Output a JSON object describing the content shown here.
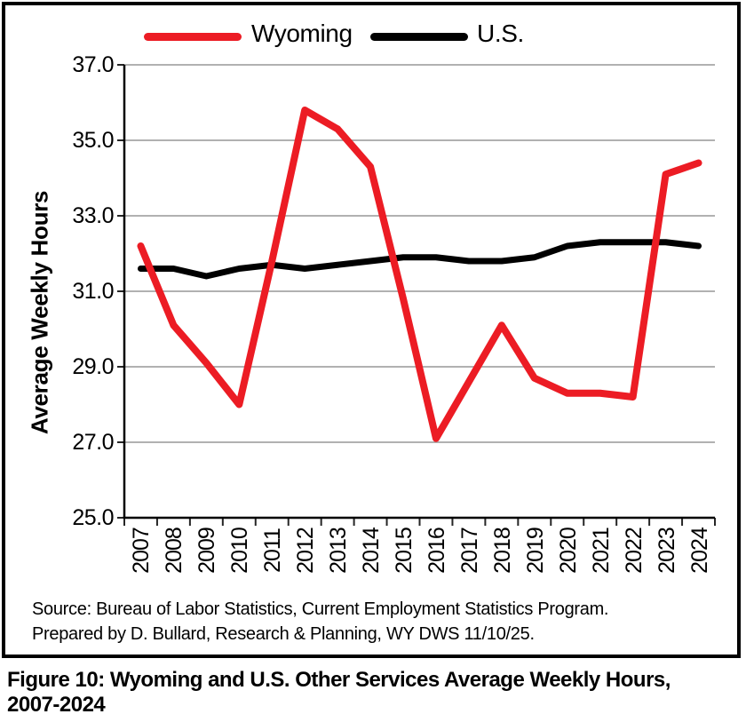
{
  "chart_data": {
    "type": "line",
    "title": "",
    "ylabel": "Average Weekly Hours",
    "xlabel": "",
    "ylim": [
      25.0,
      37.0
    ],
    "yticks": [
      "37.0",
      "35.0",
      "33.0",
      "31.0",
      "29.0",
      "27.0",
      "25.0"
    ],
    "grid": "horizontal",
    "legend_position": "top",
    "categories": [
      "2007",
      "2008",
      "2009",
      "2010",
      "2011",
      "2012",
      "2013",
      "2014",
      "2015",
      "2016",
      "2017",
      "2018",
      "2019",
      "2020",
      "2021",
      "2022",
      "2023",
      "2024"
    ],
    "series": [
      {
        "name": "Wyoming",
        "color": "#ec1c24",
        "values": [
          32.2,
          30.1,
          29.1,
          28.0,
          31.8,
          35.8,
          35.3,
          34.3,
          30.8,
          27.1,
          28.6,
          30.1,
          28.7,
          28.3,
          28.3,
          28.2,
          34.1,
          34.4
        ]
      },
      {
        "name": "U.S.",
        "color": "#000000",
        "values": [
          31.6,
          31.6,
          31.4,
          31.6,
          31.7,
          31.6,
          31.7,
          31.8,
          31.9,
          31.9,
          31.8,
          31.8,
          31.9,
          32.2,
          32.3,
          32.3,
          32.3,
          32.2
        ]
      }
    ]
  },
  "colors": {
    "gridline": "#a6a6a6",
    "axis": "#000000",
    "tick": "#262626"
  },
  "source": {
    "line1": "Source: Bureau of Labor Statistics, Current Employment Statistics Program.",
    "line2": "Prepared by D. Bullard, Research & Planning, WY DWS 11/10/25."
  },
  "caption": "Figure 10: Wyoming and U.S. Other Services Average Weekly Hours, 2007-2024"
}
